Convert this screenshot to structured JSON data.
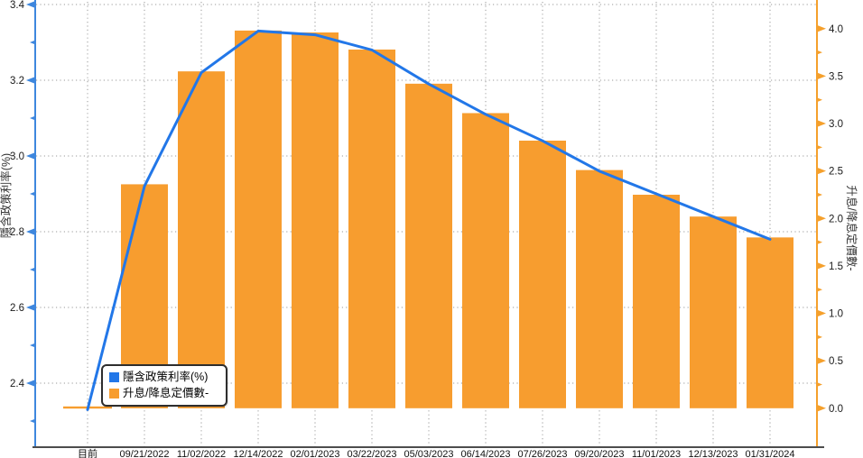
{
  "chart_data": {
    "type": "bar+line (dual y-axis combo)",
    "title": "",
    "categories": [
      "目前",
      "09/21/2022",
      "11/02/2022",
      "12/14/2022",
      "02/01/2023",
      "03/22/2023",
      "05/03/2023",
      "06/14/2023",
      "07/26/2023",
      "09/20/2023",
      "11/01/2023",
      "12/13/2023",
      "01/31/2024"
    ],
    "series": [
      {
        "name": "隱含政策利率(%)",
        "type": "line",
        "y_axis": "left",
        "color": "#2277e8",
        "values": [
          2.33,
          2.92,
          3.22,
          3.33,
          3.32,
          3.28,
          3.19,
          3.11,
          3.04,
          2.96,
          2.9,
          2.84,
          2.78
        ]
      },
      {
        "name": "升息/降息定價數-",
        "type": "bar",
        "y_axis": "right",
        "color": "#f79d2f",
        "values": [
          0,
          2.36,
          3.55,
          3.98,
          3.96,
          3.78,
          3.42,
          3.11,
          2.82,
          2.51,
          2.25,
          2.02,
          1.8
        ]
      }
    ],
    "left_axis": {
      "label": "隱含政策利率(%)",
      "color": "#3e87de",
      "tick_label_color": "#1a1a1a",
      "ticks": [
        3.4,
        3.2,
        3.0,
        2.8,
        2.6,
        2.4
      ],
      "minor_ticks": [
        3.3,
        3.1,
        2.9,
        2.7,
        2.5,
        2.3
      ],
      "range_top": 3.4,
      "range_bottom": 2.23
    },
    "right_axis": {
      "label": "升息/降息定價數-",
      "color": "#f5a02c",
      "tick_label_color": "#1a1a1a",
      "ticks": [
        4.0,
        3.5,
        3.0,
        2.5,
        2.0,
        1.5,
        1.0,
        0.5,
        0.0
      ],
      "minor_ticks": [
        3.75,
        3.25,
        2.75,
        2.25,
        1.75,
        1.25,
        0.75,
        0.25
      ],
      "range_top": 4.3,
      "range_bottom": -0.41
    },
    "grid": {
      "shown": true,
      "style": "dotted",
      "color": "#999999"
    },
    "x_axis": {
      "line_color": "#4d4d4d",
      "label_color": "#111111"
    },
    "legend": {
      "position": "bottom-left",
      "items": [
        {
          "label": "隱含政策利率(%)",
          "color": "#2277e8"
        },
        {
          "label": "升息/降息定價數-",
          "color": "#f79d2f"
        }
      ]
    }
  }
}
